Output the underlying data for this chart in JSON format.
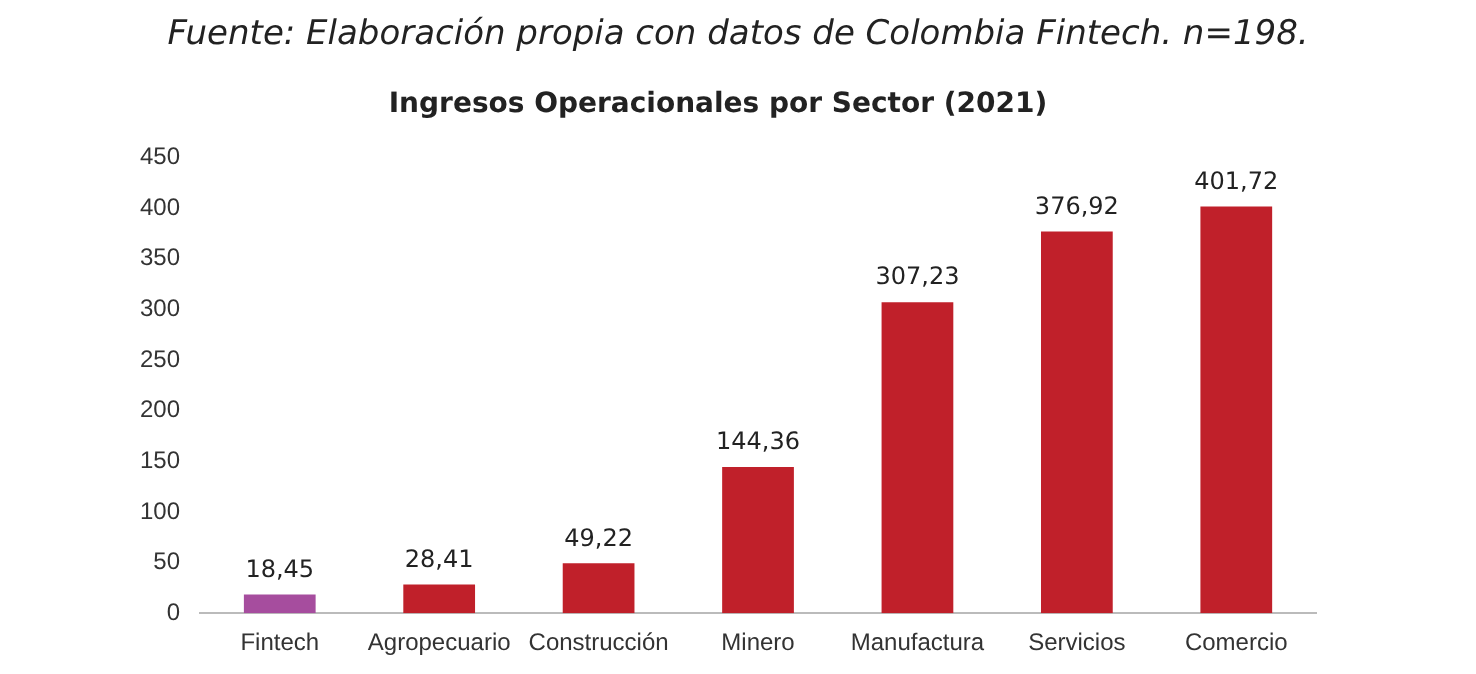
{
  "chart_data": {
    "type": "bar",
    "title": "Ingresos Operacionales por Sector (2021)",
    "annotations": [
      "Fuente: Elaboración propia con datos de Colombia Fintech. n=198."
    ],
    "categories": [
      "Fintech",
      "Agropecuario",
      "Construcción",
      "Minero",
      "Manufactura",
      "Servicios",
      "Comercio"
    ],
    "values": [
      18.45,
      28.41,
      49.22,
      144.36,
      307.23,
      376.92,
      401.72
    ],
    "value_labels": [
      "18,45",
      "28,41",
      "49,22",
      "144,36",
      "307,23",
      "376,92",
      "401,72"
    ],
    "colors": [
      "#a64d9e",
      "#c0202a",
      "#c0202a",
      "#c0202a",
      "#c0202a",
      "#c0202a",
      "#c0202a"
    ],
    "ylim": [
      0,
      450
    ],
    "yticks": [
      0,
      50,
      100,
      150,
      200,
      250,
      300,
      350,
      400,
      450
    ],
    "grid": false,
    "legend": false
  }
}
